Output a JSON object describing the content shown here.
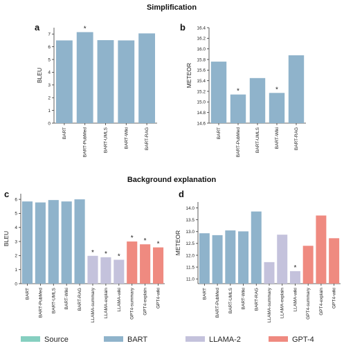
{
  "section_titles": {
    "top": "Simplification",
    "bottom": "Background explanation"
  },
  "colors": {
    "Source": "#86cfc0",
    "BART": "#8fb3cb",
    "LLAMA-2": "#c4c2dc",
    "GPT-4": "#ef8a80"
  },
  "legend": [
    "Source",
    "BART",
    "LLAMA-2",
    "GPT-4"
  ],
  "chart_data": [
    {
      "panel": "a",
      "type": "bar",
      "ylabel": "BLEU",
      "ylim": [
        0,
        7.5
      ],
      "yticks": [
        0,
        1,
        2,
        3,
        4,
        5,
        6,
        7
      ],
      "tick_decimals": 0,
      "categories": [
        "BART",
        "BART-PubMed",
        "BART-UMLS",
        "BART-Wiki",
        "BART-RAG"
      ],
      "groups": [
        "BART",
        "BART",
        "BART",
        "BART",
        "BART"
      ],
      "values": [
        6.5,
        7.15,
        6.52,
        6.5,
        7.05
      ],
      "significant": [
        false,
        true,
        false,
        false,
        false
      ]
    },
    {
      "panel": "b",
      "type": "bar",
      "ylabel": "METEOR",
      "ylim": [
        14.6,
        16.4
      ],
      "yticks": [
        14.6,
        14.8,
        15.0,
        15.2,
        15.4,
        15.6,
        15.8,
        16.0,
        16.2,
        16.4
      ],
      "tick_decimals": 1,
      "categories": [
        "BART",
        "BART-PubMed",
        "BART-UMLS",
        "BART-Wiki",
        "BART-RAG"
      ],
      "groups": [
        "BART",
        "BART",
        "BART",
        "BART",
        "BART"
      ],
      "values": [
        15.76,
        15.14,
        15.45,
        15.17,
        15.88
      ],
      "significant": [
        false,
        true,
        false,
        true,
        false
      ]
    },
    {
      "panel": "c",
      "type": "bar",
      "ylabel": "BLEU",
      "ylim": [
        0,
        6.4
      ],
      "yticks": [
        0,
        1,
        2,
        3,
        4,
        5,
        6
      ],
      "tick_decimals": 0,
      "categories": [
        "BART",
        "BART-PubMed",
        "BART-UMLS",
        "BART-Wiki",
        "BART-RAG",
        "LLAMA-summary",
        "LLAMA-explain",
        "LLAMA-wiki",
        "GPT4-summary",
        "GPT4-explain",
        "GPT4-wiki"
      ],
      "groups": [
        "BART",
        "BART",
        "BART",
        "BART",
        "BART",
        "LLAMA-2",
        "LLAMA-2",
        "LLAMA-2",
        "GPT-4",
        "GPT-4",
        "GPT-4"
      ],
      "values": [
        5.85,
        5.78,
        5.95,
        5.85,
        6.0,
        1.98,
        1.88,
        1.7,
        3.0,
        2.8,
        2.58
      ],
      "significant": [
        false,
        false,
        false,
        false,
        false,
        true,
        true,
        true,
        true,
        true,
        true
      ]
    },
    {
      "panel": "d",
      "type": "bar",
      "ylabel": "METEOR",
      "ylim": [
        10.8,
        14.25
      ],
      "yticks": [
        11.0,
        11.5,
        12.0,
        12.5,
        13.0,
        13.5,
        14.0
      ],
      "tick_decimals": 1,
      "categories": [
        "BART",
        "BART-PubMed",
        "BART-UMLS",
        "BART-Wiki",
        "BART-RAG",
        "LLAMA-summary",
        "LLAMA-explain",
        "LLAMA-wiki",
        "GPT4-summary",
        "GPT4-explain",
        "GPT4-wiki"
      ],
      "groups": [
        "BART",
        "BART",
        "BART",
        "BART",
        "BART",
        "LLAMA-2",
        "LLAMA-2",
        "LLAMA-2",
        "GPT-4",
        "GPT-4",
        "GPT-4"
      ],
      "values": [
        12.93,
        12.85,
        13.05,
        13.01,
        13.85,
        11.71,
        12.87,
        11.33,
        12.4,
        13.68,
        12.72
      ],
      "significant": [
        false,
        false,
        false,
        false,
        false,
        false,
        false,
        true,
        false,
        false,
        false
      ]
    }
  ]
}
